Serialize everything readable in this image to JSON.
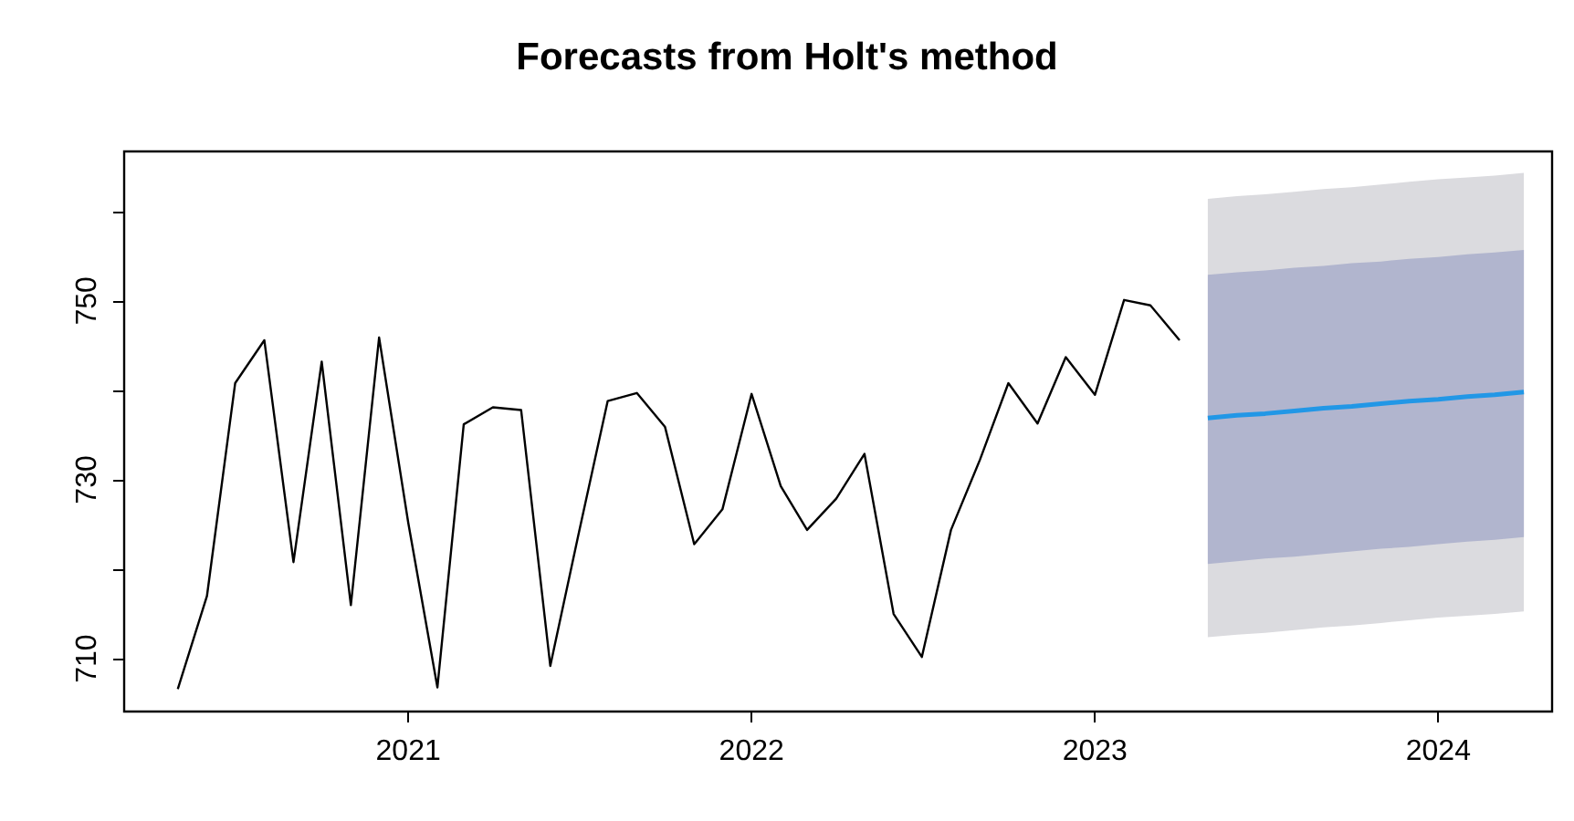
{
  "chart_data": {
    "type": "line",
    "title": "Forecasts from Holt's method",
    "x": [
      "2020-05",
      "2020-06",
      "2020-07",
      "2020-08",
      "2020-09",
      "2020-10",
      "2020-11",
      "2020-12",
      "2021-01",
      "2021-02",
      "2021-03",
      "2021-04",
      "2021-05",
      "2021-06",
      "2021-07",
      "2021-08",
      "2021-09",
      "2021-10",
      "2021-11",
      "2021-12",
      "2022-01",
      "2022-02",
      "2022-03",
      "2022-04",
      "2022-05",
      "2022-06",
      "2022-07",
      "2022-08",
      "2022-09",
      "2022-10",
      "2022-11",
      "2022-12",
      "2023-01",
      "2023-02",
      "2023-03",
      "2023-04"
    ],
    "series": [
      {
        "color": "#000000",
        "values": [
          706.6,
          717.0,
          740.8,
          745.6,
          720.8,
          743.2,
          716.0,
          745.9,
          725.2,
          706.8,
          736.2,
          738.1,
          737.8,
          709.2,
          723.9,
          738.8,
          739.7,
          735.9,
          722.8,
          726.7,
          739.6,
          729.3,
          724.4,
          727.9,
          732.9,
          715.0,
          710.2,
          724.4,
          732.3,
          740.8,
          736.3,
          743.7,
          739.5,
          750.1,
          749.5,
          745.6
        ]
      },
      {
        "type": "area",
        "color": "#dbdbdf",
        "x": [
          "2023-05",
          "2023-06",
          "2023-07",
          "2023-08",
          "2023-09",
          "2023-10",
          "2023-11",
          "2023-12",
          "2024-01",
          "2024-02",
          "2024-03",
          "2024-04"
        ],
        "values": [
          null,
          null,
          null,
          null,
          null,
          null,
          null,
          null,
          null,
          null,
          null,
          null
        ],
        "lower": [
          712.4,
          712.7,
          712.9,
          713.2,
          713.5,
          713.7,
          714.0,
          714.3,
          714.6,
          714.8,
          715.0,
          715.3
        ],
        "upper": [
          761.4,
          761.7,
          761.9,
          762.2,
          762.5,
          762.7,
          763.0,
          763.3,
          763.6,
          763.8,
          764.0,
          764.3
        ]
      },
      {
        "type": "area",
        "color": "#b1b5ce",
        "x": [
          "2023-05",
          "2023-06",
          "2023-07",
          "2023-08",
          "2023-09",
          "2023-10",
          "2023-11",
          "2023-12",
          "2024-01",
          "2024-02",
          "2024-03",
          "2024-04"
        ],
        "values": [
          null,
          null,
          null,
          null,
          null,
          null,
          null,
          null,
          null,
          null,
          null,
          null
        ],
        "lower": [
          720.6,
          720.9,
          721.2,
          721.4,
          721.7,
          722.0,
          722.3,
          722.5,
          722.8,
          723.1,
          723.3,
          723.6
        ],
        "upper": [
          752.9,
          753.2,
          753.4,
          753.7,
          753.9,
          754.2,
          754.4,
          754.7,
          754.9,
          755.2,
          755.4,
          755.7
        ]
      },
      {
        "color": "#2297e6",
        "x": [
          "2023-05",
          "2023-06",
          "2023-07",
          "2023-08",
          "2023-09",
          "2023-10",
          "2023-11",
          "2023-12",
          "2024-01",
          "2024-02",
          "2024-03",
          "2024-04"
        ],
        "values": [
          736.9,
          737.2,
          737.4,
          737.7,
          738.0,
          738.2,
          738.5,
          738.8,
          739.0,
          739.3,
          739.5,
          739.8
        ]
      }
    ],
    "xlim": [
      "2020-03-05",
      "2024-05-01"
    ],
    "xticks": [
      "2021",
      "2022",
      "2023",
      "2024"
    ],
    "ylim": [
      704.1,
      766.7
    ],
    "yticks": [
      710,
      {
        "value": 720,
        "label": null
      },
      730,
      {
        "value": 740,
        "label": null
      },
      750,
      {
        "value": 760,
        "label": null
      }
    ],
    "grid": false,
    "marker": "none"
  }
}
